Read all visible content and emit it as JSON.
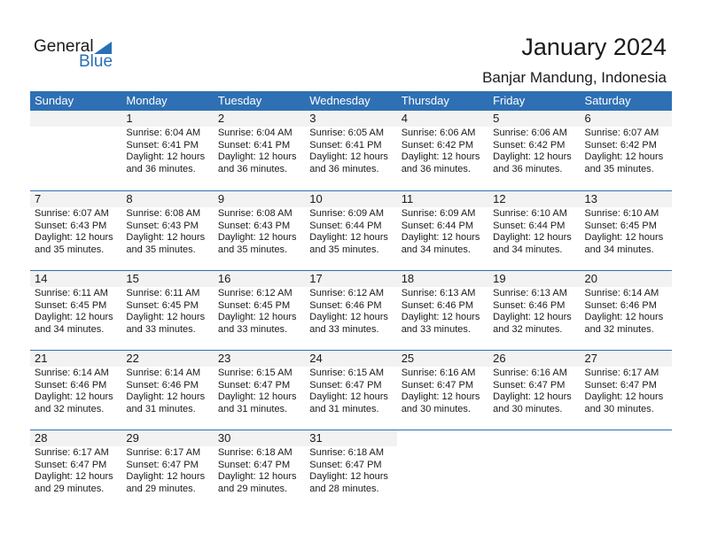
{
  "logo": {
    "word1": "General",
    "word2": "Blue"
  },
  "title": "January 2024",
  "location": "Banjar Mandung, Indonesia",
  "colors": {
    "header": "#2e70b3",
    "band": "#f2f2f2",
    "logo_blue": "#2a6fb5"
  },
  "weekdays": [
    "Sunday",
    "Monday",
    "Tuesday",
    "Wednesday",
    "Thursday",
    "Friday",
    "Saturday"
  ],
  "first_weekday_offset": 1,
  "days": [
    {
      "d": "1",
      "sunrise": "Sunrise: 6:04 AM",
      "sunset": "Sunset: 6:41 PM",
      "daylight": "Daylight: 12 hours",
      "minutes": "and 36 minutes."
    },
    {
      "d": "2",
      "sunrise": "Sunrise: 6:04 AM",
      "sunset": "Sunset: 6:41 PM",
      "daylight": "Daylight: 12 hours",
      "minutes": "and 36 minutes."
    },
    {
      "d": "3",
      "sunrise": "Sunrise: 6:05 AM",
      "sunset": "Sunset: 6:41 PM",
      "daylight": "Daylight: 12 hours",
      "minutes": "and 36 minutes."
    },
    {
      "d": "4",
      "sunrise": "Sunrise: 6:06 AM",
      "sunset": "Sunset: 6:42 PM",
      "daylight": "Daylight: 12 hours",
      "minutes": "and 36 minutes."
    },
    {
      "d": "5",
      "sunrise": "Sunrise: 6:06 AM",
      "sunset": "Sunset: 6:42 PM",
      "daylight": "Daylight: 12 hours",
      "minutes": "and 36 minutes."
    },
    {
      "d": "6",
      "sunrise": "Sunrise: 6:07 AM",
      "sunset": "Sunset: 6:42 PM",
      "daylight": "Daylight: 12 hours",
      "minutes": "and 35 minutes."
    },
    {
      "d": "7",
      "sunrise": "Sunrise: 6:07 AM",
      "sunset": "Sunset: 6:43 PM",
      "daylight": "Daylight: 12 hours",
      "minutes": "and 35 minutes."
    },
    {
      "d": "8",
      "sunrise": "Sunrise: 6:08 AM",
      "sunset": "Sunset: 6:43 PM",
      "daylight": "Daylight: 12 hours",
      "minutes": "and 35 minutes."
    },
    {
      "d": "9",
      "sunrise": "Sunrise: 6:08 AM",
      "sunset": "Sunset: 6:43 PM",
      "daylight": "Daylight: 12 hours",
      "minutes": "and 35 minutes."
    },
    {
      "d": "10",
      "sunrise": "Sunrise: 6:09 AM",
      "sunset": "Sunset: 6:44 PM",
      "daylight": "Daylight: 12 hours",
      "minutes": "and 35 minutes."
    },
    {
      "d": "11",
      "sunrise": "Sunrise: 6:09 AM",
      "sunset": "Sunset: 6:44 PM",
      "daylight": "Daylight: 12 hours",
      "minutes": "and 34 minutes."
    },
    {
      "d": "12",
      "sunrise": "Sunrise: 6:10 AM",
      "sunset": "Sunset: 6:44 PM",
      "daylight": "Daylight: 12 hours",
      "minutes": "and 34 minutes."
    },
    {
      "d": "13",
      "sunrise": "Sunrise: 6:10 AM",
      "sunset": "Sunset: 6:45 PM",
      "daylight": "Daylight: 12 hours",
      "minutes": "and 34 minutes."
    },
    {
      "d": "14",
      "sunrise": "Sunrise: 6:11 AM",
      "sunset": "Sunset: 6:45 PM",
      "daylight": "Daylight: 12 hours",
      "minutes": "and 34 minutes."
    },
    {
      "d": "15",
      "sunrise": "Sunrise: 6:11 AM",
      "sunset": "Sunset: 6:45 PM",
      "daylight": "Daylight: 12 hours",
      "minutes": "and 33 minutes."
    },
    {
      "d": "16",
      "sunrise": "Sunrise: 6:12 AM",
      "sunset": "Sunset: 6:45 PM",
      "daylight": "Daylight: 12 hours",
      "minutes": "and 33 minutes."
    },
    {
      "d": "17",
      "sunrise": "Sunrise: 6:12 AM",
      "sunset": "Sunset: 6:46 PM",
      "daylight": "Daylight: 12 hours",
      "minutes": "and 33 minutes."
    },
    {
      "d": "18",
      "sunrise": "Sunrise: 6:13 AM",
      "sunset": "Sunset: 6:46 PM",
      "daylight": "Daylight: 12 hours",
      "minutes": "and 33 minutes."
    },
    {
      "d": "19",
      "sunrise": "Sunrise: 6:13 AM",
      "sunset": "Sunset: 6:46 PM",
      "daylight": "Daylight: 12 hours",
      "minutes": "and 32 minutes."
    },
    {
      "d": "20",
      "sunrise": "Sunrise: 6:14 AM",
      "sunset": "Sunset: 6:46 PM",
      "daylight": "Daylight: 12 hours",
      "minutes": "and 32 minutes."
    },
    {
      "d": "21",
      "sunrise": "Sunrise: 6:14 AM",
      "sunset": "Sunset: 6:46 PM",
      "daylight": "Daylight: 12 hours",
      "minutes": "and 32 minutes."
    },
    {
      "d": "22",
      "sunrise": "Sunrise: 6:14 AM",
      "sunset": "Sunset: 6:46 PM",
      "daylight": "Daylight: 12 hours",
      "minutes": "and 31 minutes."
    },
    {
      "d": "23",
      "sunrise": "Sunrise: 6:15 AM",
      "sunset": "Sunset: 6:47 PM",
      "daylight": "Daylight: 12 hours",
      "minutes": "and 31 minutes."
    },
    {
      "d": "24",
      "sunrise": "Sunrise: 6:15 AM",
      "sunset": "Sunset: 6:47 PM",
      "daylight": "Daylight: 12 hours",
      "minutes": "and 31 minutes."
    },
    {
      "d": "25",
      "sunrise": "Sunrise: 6:16 AM",
      "sunset": "Sunset: 6:47 PM",
      "daylight": "Daylight: 12 hours",
      "minutes": "and 30 minutes."
    },
    {
      "d": "26",
      "sunrise": "Sunrise: 6:16 AM",
      "sunset": "Sunset: 6:47 PM",
      "daylight": "Daylight: 12 hours",
      "minutes": "and 30 minutes."
    },
    {
      "d": "27",
      "sunrise": "Sunrise: 6:17 AM",
      "sunset": "Sunset: 6:47 PM",
      "daylight": "Daylight: 12 hours",
      "minutes": "and 30 minutes."
    },
    {
      "d": "28",
      "sunrise": "Sunrise: 6:17 AM",
      "sunset": "Sunset: 6:47 PM",
      "daylight": "Daylight: 12 hours",
      "minutes": "and 29 minutes."
    },
    {
      "d": "29",
      "sunrise": "Sunrise: 6:17 AM",
      "sunset": "Sunset: 6:47 PM",
      "daylight": "Daylight: 12 hours",
      "minutes": "and 29 minutes."
    },
    {
      "d": "30",
      "sunrise": "Sunrise: 6:18 AM",
      "sunset": "Sunset: 6:47 PM",
      "daylight": "Daylight: 12 hours",
      "minutes": "and 29 minutes."
    },
    {
      "d": "31",
      "sunrise": "Sunrise: 6:18 AM",
      "sunset": "Sunset: 6:47 PM",
      "daylight": "Daylight: 12 hours",
      "minutes": "and 28 minutes."
    }
  ]
}
